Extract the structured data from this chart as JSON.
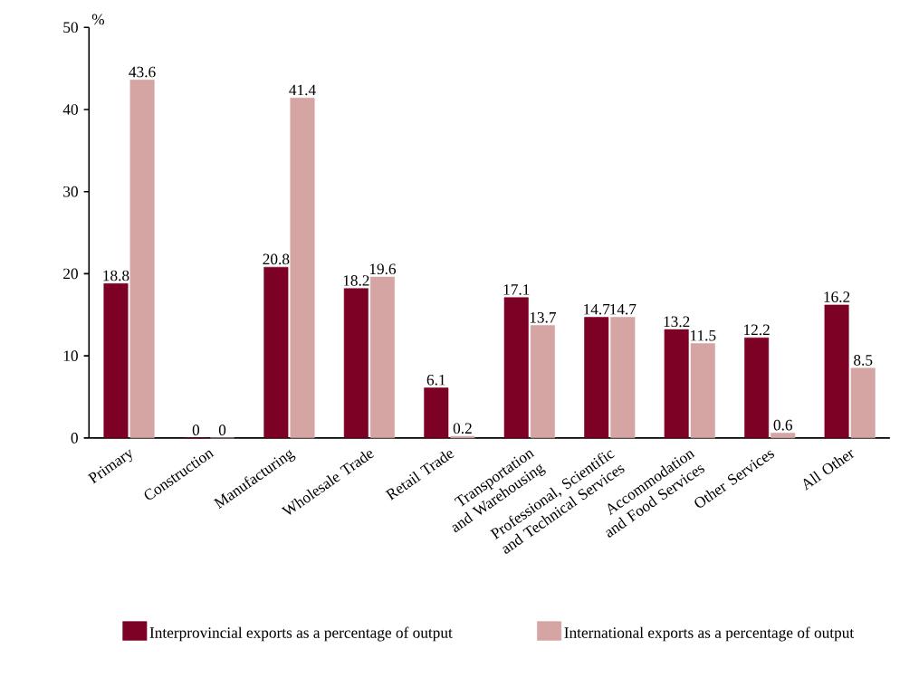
{
  "chart_data": {
    "type": "bar",
    "ylabel": "%",
    "categories": [
      "Primary",
      "Construction",
      "Manufacturing",
      "Wholesale Trade",
      "Retail Trade",
      "Transportation and Warehousing",
      "Professional, Scientific and Technical Services",
      "Accommodation and Food Services",
      "Other Services",
      "All Other"
    ],
    "series": [
      {
        "name": "Interprovincial exports as a percentage of output",
        "color": "#7d0025",
        "values": [
          18.8,
          0,
          20.8,
          18.2,
          6.1,
          17.1,
          14.7,
          13.2,
          12.2,
          16.2
        ],
        "value_labels": [
          "18.8",
          "0",
          "20.8",
          "18.2",
          "6.1",
          "17.1",
          "14.7",
          "13.2",
          "12.2",
          "16.2"
        ]
      },
      {
        "name": "International exports as a percentage of output",
        "color": "#d4a5a3",
        "values": [
          43.6,
          0,
          41.4,
          19.6,
          0.2,
          13.7,
          14.7,
          11.5,
          0.6,
          8.5
        ],
        "value_labels": [
          "43.6",
          "0",
          "41.4",
          "19.6",
          "0.2",
          "13.7",
          "14.7",
          "11.5",
          "0.6",
          "8.5"
        ]
      }
    ],
    "ylim": [
      0,
      50
    ],
    "yticks": [
      0,
      10,
      20,
      30,
      40,
      50
    ],
    "legend": "bottom",
    "grid": false
  }
}
